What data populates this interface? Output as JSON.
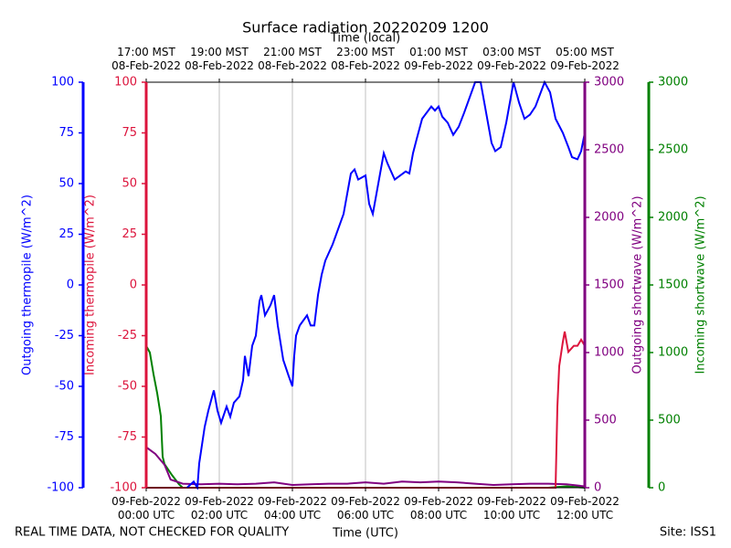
{
  "chart_data": {
    "type": "line",
    "title": "Surface radiation 20220209 1200",
    "xlabel": "Time (UTC)",
    "x2label": "Time (local)",
    "footer_left": "REAL TIME DATA, NOT CHECKED FOR QUALITY",
    "footer_right": "Site: ISS1",
    "xlim": [
      "09-Feb-2022 00:00",
      "09-Feb-2022 12:00"
    ],
    "xticks": [
      {
        "value": "09-Feb-2022 00:00",
        "label": "09-Feb-2022\n00:00 UTC"
      },
      {
        "value": "09-Feb-2022 02:00",
        "label": "09-Feb-2022\n02:00 UTC"
      },
      {
        "value": "09-Feb-2022 04:00",
        "label": "09-Feb-2022\n04:00 UTC"
      },
      {
        "value": "09-Feb-2022 06:00",
        "label": "09-Feb-2022\n06:00 UTC"
      },
      {
        "value": "09-Feb-2022 08:00",
        "label": "09-Feb-2022\n08:00 UTC"
      },
      {
        "value": "09-Feb-2022 10:00",
        "label": "09-Feb-2022\n10:00 UTC"
      },
      {
        "value": "09-Feb-2022 12:00",
        "label": "09-Feb-2022\n12:00 UTC"
      }
    ],
    "x2ticks": [
      {
        "value": "09-Feb-2022 00:00",
        "label": "17:00 MST\n08-Feb-2022"
      },
      {
        "value": "09-Feb-2022 02:00",
        "label": "19:00 MST\n08-Feb-2022"
      },
      {
        "value": "09-Feb-2022 04:00",
        "label": "21:00 MST\n08-Feb-2022"
      },
      {
        "value": "09-Feb-2022 06:00",
        "label": "23:00 MST\n08-Feb-2022"
      },
      {
        "value": "09-Feb-2022 08:00",
        "label": "01:00 MST\n09-Feb-2022"
      },
      {
        "value": "09-Feb-2022 10:00",
        "label": "03:00 MST\n09-Feb-2022"
      },
      {
        "value": "09-Feb-2022 12:00",
        "label": "05:00 MST\n09-Feb-2022"
      }
    ],
    "grid": true,
    "ylim": [
      -100,
      100
    ],
    "yticks": [
      -100,
      -75,
      -50,
      -25,
      0,
      25,
      50,
      75,
      100
    ],
    "ylabel": [
      "Outgoing thermopile (W/m^2)",
      "Incoming thermopile (W/m^2)"
    ],
    "y2lim": [
      0,
      3000
    ],
    "y2ticks": [
      0,
      500,
      1000,
      1500,
      2000,
      2500,
      3000
    ],
    "y2label": "Outgoing shortwave (W/m^2)",
    "y3lim": [
      0,
      3000
    ],
    "y3ticks": [
      0,
      500,
      1000,
      1500,
      2000,
      2500,
      3000
    ],
    "y3label": "Incoming shortwave (W/m^2)",
    "series": [
      {
        "name": "Outgoing thermopile",
        "color": "#0000ff",
        "axis": "y",
        "x": [
          "09-Feb-2022 01:07",
          "09-Feb-2022 01:18",
          "09-Feb-2022 01:24",
          "09-Feb-2022 01:27",
          "09-Feb-2022 01:36",
          "09-Feb-2022 01:42",
          "09-Feb-2022 01:51",
          "09-Feb-2022 01:57",
          "09-Feb-2022 02:03",
          "09-Feb-2022 02:12",
          "09-Feb-2022 02:18",
          "09-Feb-2022 02:24",
          "09-Feb-2022 02:33",
          "09-Feb-2022 02:39",
          "09-Feb-2022 02:42",
          "09-Feb-2022 02:48",
          "09-Feb-2022 02:54",
          "09-Feb-2022 03:00",
          "09-Feb-2022 03:06",
          "09-Feb-2022 03:09",
          "09-Feb-2022 03:15",
          "09-Feb-2022 03:24",
          "09-Feb-2022 03:30",
          "09-Feb-2022 03:36",
          "09-Feb-2022 03:45",
          "09-Feb-2022 03:54",
          "09-Feb-2022 04:00",
          "09-Feb-2022 04:03",
          "09-Feb-2022 04:06",
          "09-Feb-2022 04:12",
          "09-Feb-2022 04:24",
          "09-Feb-2022 04:30",
          "09-Feb-2022 04:36",
          "09-Feb-2022 04:42",
          "09-Feb-2022 04:48",
          "09-Feb-2022 04:54",
          "09-Feb-2022 05:06",
          "09-Feb-2022 05:12",
          "09-Feb-2022 05:24",
          "09-Feb-2022 05:30",
          "09-Feb-2022 05:36",
          "09-Feb-2022 05:42",
          "09-Feb-2022 05:48",
          "09-Feb-2022 06:00",
          "09-Feb-2022 06:06",
          "09-Feb-2022 06:12",
          "09-Feb-2022 06:18",
          "09-Feb-2022 06:27",
          "09-Feb-2022 06:30",
          "09-Feb-2022 06:36",
          "09-Feb-2022 06:48",
          "09-Feb-2022 07:06",
          "09-Feb-2022 07:12",
          "09-Feb-2022 07:18",
          "09-Feb-2022 07:24",
          "09-Feb-2022 07:33",
          "09-Feb-2022 07:48",
          "09-Feb-2022 07:54",
          "09-Feb-2022 08:00",
          "09-Feb-2022 08:06",
          "09-Feb-2022 08:15",
          "09-Feb-2022 08:24",
          "09-Feb-2022 08:33",
          "09-Feb-2022 08:42",
          "09-Feb-2022 08:54",
          "09-Feb-2022 09:00",
          "09-Feb-2022 09:09",
          "09-Feb-2022 09:18",
          "09-Feb-2022 09:27",
          "09-Feb-2022 09:33",
          "09-Feb-2022 09:42",
          "09-Feb-2022 09:51",
          "09-Feb-2022 10:00",
          "09-Feb-2022 10:03",
          "09-Feb-2022 10:12",
          "09-Feb-2022 10:21",
          "09-Feb-2022 10:30",
          "09-Feb-2022 10:39",
          "09-Feb-2022 10:54",
          "09-Feb-2022 11:03",
          "09-Feb-2022 11:12",
          "09-Feb-2022 11:24",
          "09-Feb-2022 11:33",
          "09-Feb-2022 11:39",
          "09-Feb-2022 11:48",
          "09-Feb-2022 11:54",
          "09-Feb-2022 12:00"
        ],
        "values": [
          -100,
          -97,
          -100,
          -88,
          -70,
          -62,
          -52,
          -62,
          -68,
          -60,
          -65,
          -58,
          -55,
          -47,
          -35,
          -45,
          -30,
          -25,
          -8,
          -5,
          -15,
          -10,
          -5,
          -20,
          -37,
          -45,
          -50,
          -35,
          -25,
          -20,
          -15,
          -20,
          -20,
          -5,
          5,
          12,
          20,
          25,
          35,
          45,
          55,
          57,
          52,
          54,
          40,
          35,
          45,
          60,
          65,
          60,
          52,
          56,
          55,
          65,
          72,
          82,
          88,
          86,
          88,
          83,
          80,
          74,
          78,
          85,
          95,
          100,
          100,
          85,
          70,
          66,
          68,
          80,
          95,
          100,
          90,
          82,
          84,
          88,
          100,
          95,
          82,
          75,
          68,
          63,
          62,
          66,
          75
        ]
      },
      {
        "name": "Incoming thermopile",
        "color": "#dc143c",
        "axis": "y",
        "x": [
          "09-Feb-2022 00:00",
          "09-Feb-2022 11:12",
          "09-Feb-2022 11:15",
          "09-Feb-2022 11:18",
          "09-Feb-2022 11:24",
          "09-Feb-2022 11:27",
          "09-Feb-2022 11:33",
          "09-Feb-2022 11:42",
          "09-Feb-2022 11:48",
          "09-Feb-2022 11:54",
          "09-Feb-2022 12:00"
        ],
        "values": [
          -100,
          -100,
          -60,
          -40,
          -28,
          -23,
          -33,
          -30,
          -30,
          -27,
          -30
        ]
      },
      {
        "name": "Outgoing shortwave",
        "color": "#800080",
        "axis": "y2",
        "x": [
          "09-Feb-2022 00:00",
          "09-Feb-2022 00:15",
          "09-Feb-2022 00:30",
          "09-Feb-2022 00:40",
          "09-Feb-2022 01:00",
          "09-Feb-2022 01:30",
          "09-Feb-2022 02:00",
          "09-Feb-2022 02:30",
          "09-Feb-2022 03:00",
          "09-Feb-2022 03:30",
          "09-Feb-2022 04:00",
          "09-Feb-2022 04:30",
          "09-Feb-2022 05:00",
          "09-Feb-2022 05:30",
          "09-Feb-2022 06:00",
          "09-Feb-2022 06:30",
          "09-Feb-2022 07:00",
          "09-Feb-2022 07:30",
          "09-Feb-2022 08:00",
          "09-Feb-2022 08:30",
          "09-Feb-2022 09:00",
          "09-Feb-2022 09:30",
          "09-Feb-2022 10:00",
          "09-Feb-2022 10:30",
          "09-Feb-2022 11:00",
          "09-Feb-2022 11:30",
          "09-Feb-2022 12:00"
        ],
        "values": [
          300,
          250,
          170,
          60,
          30,
          25,
          30,
          25,
          30,
          40,
          20,
          25,
          30,
          30,
          40,
          30,
          45,
          40,
          45,
          40,
          30,
          20,
          25,
          30,
          30,
          25,
          10
        ]
      },
      {
        "name": "Incoming shortwave",
        "color": "#008000",
        "axis": "y3",
        "x": [
          "09-Feb-2022 00:00",
          "09-Feb-2022 00:06",
          "09-Feb-2022 00:12",
          "09-Feb-2022 00:18",
          "09-Feb-2022 00:24",
          "09-Feb-2022 00:27",
          "09-Feb-2022 00:30",
          "09-Feb-2022 00:42",
          "09-Feb-2022 00:54",
          "09-Feb-2022 01:00",
          "09-Feb-2022 06:00",
          "09-Feb-2022 11:00",
          "09-Feb-2022 11:30",
          "09-Feb-2022 12:00"
        ],
        "values": [
          1050,
          1000,
          840,
          700,
          530,
          230,
          175,
          95,
          25,
          0,
          0,
          0,
          10,
          0
        ]
      }
    ]
  }
}
